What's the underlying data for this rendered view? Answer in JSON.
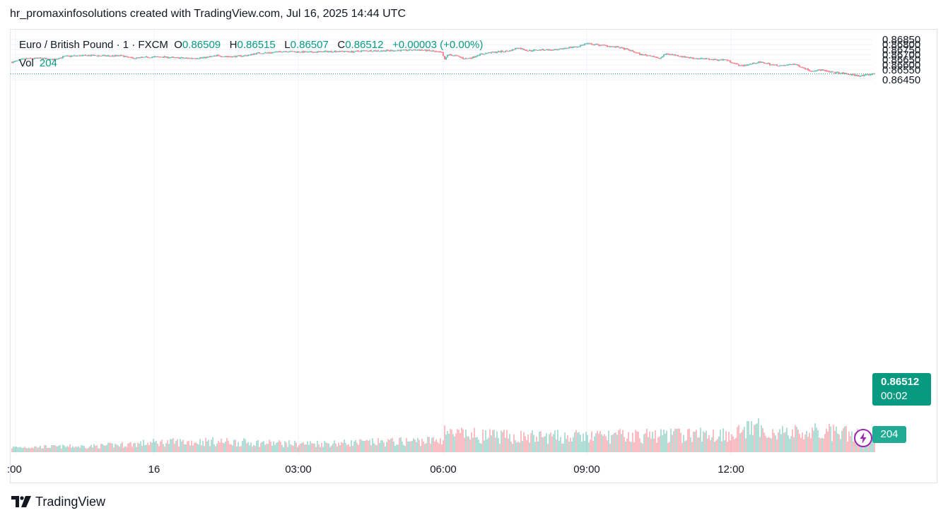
{
  "header": {
    "text": "hr_promaxinfosolutions created with TradingView.com, Jul 16, 2025 14:44 UTC"
  },
  "legend": {
    "symbol": "Euro / British Pound · 1 · FXCM",
    "o_label": "O",
    "o_value": "0.86509",
    "h_label": "H",
    "h_value": "0.86515",
    "l_label": "L",
    "l_value": "0.86507",
    "c_label": "C",
    "c_value": "0.86512",
    "change": "+0.00003 (+0.00%)",
    "vol_label": "Vol",
    "vol_value": "204"
  },
  "price_tag": {
    "price": "0.86512",
    "countdown": "00:02"
  },
  "volume_tag": {
    "value": "204"
  },
  "footer": {
    "brand": "TradingView"
  },
  "colors": {
    "up": "#089981",
    "down": "#f23645",
    "grid": "#f0f3fa",
    "accent": "#9c27b0"
  },
  "chart_data": {
    "type": "candlestick",
    "title": "Euro / British Pound · 1 · FXCM",
    "y_ticks": [
      "0.86850",
      "0.86800",
      "0.86750",
      "0.86700",
      "0.86650",
      "0.86600",
      "0.86550",
      "0.86450"
    ],
    "x_ticks": [
      ":00",
      "16",
      "03:00",
      "06:00",
      "09:00",
      "12:00"
    ],
    "ylim": [
      0.8644,
      0.8685
    ],
    "last_price": 0.86512,
    "price_path": [
      [
        0,
        0.86625
      ],
      [
        18,
        0.8666
      ],
      [
        40,
        0.86665
      ],
      [
        58,
        0.8665
      ],
      [
        75,
        0.86685
      ],
      [
        95,
        0.8669
      ],
      [
        115,
        0.86692
      ],
      [
        135,
        0.86688
      ],
      [
        155,
        0.8669
      ],
      [
        170,
        0.86665
      ],
      [
        190,
        0.86675
      ],
      [
        210,
        0.8668
      ],
      [
        230,
        0.8667
      ],
      [
        250,
        0.86665
      ],
      [
        270,
        0.8667
      ],
      [
        290,
        0.8669
      ],
      [
        310,
        0.8668
      ],
      [
        335,
        0.86695
      ],
      [
        345,
        0.86715
      ],
      [
        365,
        0.8672
      ],
      [
        385,
        0.86735
      ],
      [
        400,
        0.8673
      ],
      [
        420,
        0.86725
      ],
      [
        440,
        0.8673
      ],
      [
        460,
        0.86735
      ],
      [
        480,
        0.8673
      ],
      [
        500,
        0.8674
      ],
      [
        520,
        0.86738
      ],
      [
        540,
        0.86742
      ],
      [
        560,
        0.86745
      ],
      [
        575,
        0.86748
      ],
      [
        590,
        0.8674
      ],
      [
        608,
        0.8672
      ],
      [
        612,
        0.8665
      ],
      [
        616,
        0.867
      ],
      [
        628,
        0.8669
      ],
      [
        640,
        0.8666
      ],
      [
        650,
        0.8667
      ],
      [
        660,
        0.867
      ],
      [
        675,
        0.8672
      ],
      [
        690,
        0.8673
      ],
      [
        705,
        0.8674
      ],
      [
        715,
        0.8677
      ],
      [
        730,
        0.8674
      ],
      [
        750,
        0.8675
      ],
      [
        770,
        0.86745
      ],
      [
        785,
        0.8677
      ],
      [
        800,
        0.8678
      ],
      [
        812,
        0.8681
      ],
      [
        825,
        0.868
      ],
      [
        840,
        0.8679
      ],
      [
        860,
        0.8677
      ],
      [
        875,
        0.8674
      ],
      [
        890,
        0.867
      ],
      [
        905,
        0.8669
      ],
      [
        915,
        0.8666
      ],
      [
        925,
        0.8671
      ],
      [
        935,
        0.867
      ],
      [
        950,
        0.8668
      ],
      [
        965,
        0.86665
      ],
      [
        980,
        0.8666
      ],
      [
        995,
        0.8665
      ],
      [
        1010,
        0.8665
      ],
      [
        1020,
        0.8662
      ],
      [
        1030,
        0.8659
      ],
      [
        1040,
        0.866
      ],
      [
        1055,
        0.86625
      ],
      [
        1065,
        0.8662
      ],
      [
        1075,
        0.866
      ],
      [
        1090,
        0.8659
      ],
      [
        1105,
        0.8661
      ],
      [
        1118,
        0.86575
      ],
      [
        1130,
        0.8654
      ],
      [
        1145,
        0.8655
      ],
      [
        1155,
        0.8653
      ],
      [
        1170,
        0.8652
      ],
      [
        1185,
        0.86505
      ],
      [
        1200,
        0.8649
      ],
      [
        1210,
        0.865
      ],
      [
        1220,
        0.86512
      ]
    ],
    "volume_profile": [
      [
        0,
        0.15
      ],
      [
        120,
        0.2
      ],
      [
        200,
        0.35
      ],
      [
        280,
        0.4
      ],
      [
        400,
        0.3
      ],
      [
        500,
        0.35
      ],
      [
        608,
        0.45
      ],
      [
        612,
        1.0
      ],
      [
        620,
        0.7
      ],
      [
        700,
        0.6
      ],
      [
        800,
        0.6
      ],
      [
        900,
        0.65
      ],
      [
        1000,
        0.7
      ],
      [
        1055,
        0.95
      ],
      [
        1070,
        0.85
      ],
      [
        1100,
        0.75
      ],
      [
        1150,
        0.8
      ],
      [
        1220,
        0.6
      ]
    ]
  }
}
